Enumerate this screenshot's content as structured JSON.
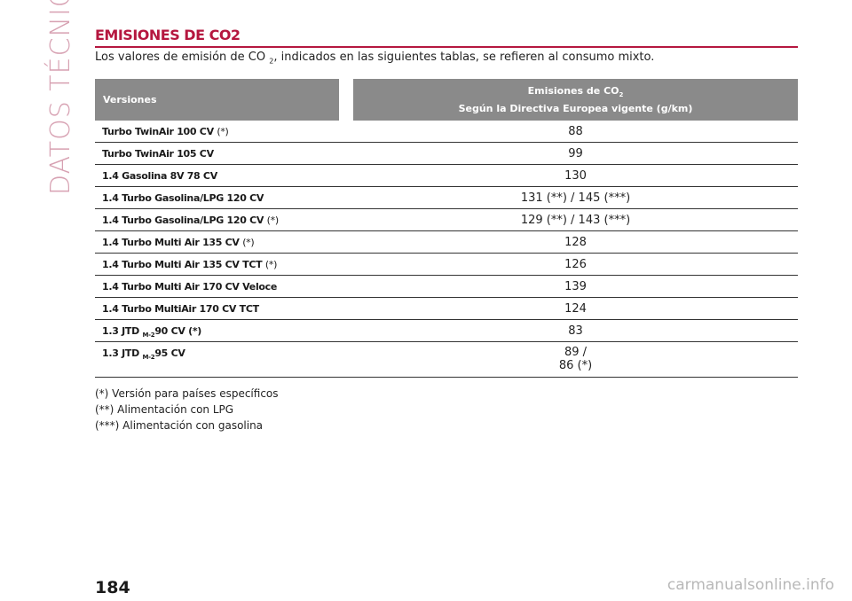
{
  "section_label": "DATOS TÉCNICOS",
  "heading": "EMISIONES DE CO2",
  "intro": {
    "before": "Los valores de emisión de CO ",
    "sub": "2",
    "after": ", indicados en las siguientes tablas, se refieren al consumo mixto."
  },
  "table": {
    "header_versions": "Versiones",
    "header_emissions_line1": "Emisiones de CO",
    "header_emissions_sub": "2",
    "header_emissions_line2": "Según la Directiva Europea vigente (g/km)",
    "rows": [
      {
        "name": "Turbo TwinAir 100 CV",
        "note": "(*)",
        "value": "88"
      },
      {
        "name": "Turbo TwinAir 105 CV",
        "note": "",
        "value": "99"
      },
      {
        "name": "1.4 Gasolina 8V 78 CV",
        "note": "",
        "value": "130"
      },
      {
        "name": "1.4 Turbo Gasolina/LPG 120 CV",
        "note": "",
        "value": "131 (**) / 145 (***)"
      },
      {
        "name": "1.4 Turbo Gasolina/LPG 120 CV",
        "note": "(*)",
        "value": "129 (**) / 143 (***)"
      },
      {
        "name": "1.4 Turbo Multi Air 135 CV",
        "note": "(*)",
        "value": "128"
      },
      {
        "name": "1.4 Turbo Multi Air 135 CV TCT",
        "note": "(*)",
        "value": "126"
      },
      {
        "name": "1.4 Turbo Multi Air 170 CV Veloce",
        "note": "",
        "value": "139"
      },
      {
        "name": "1.4 Turbo MultiAir 170 CV TCT",
        "note": "",
        "value": "124"
      },
      {
        "name_prefix": "1.3 JTD",
        "name_sub": "M-2",
        "name_suffix": "90 CV",
        "note": "(*)",
        "value": "83"
      },
      {
        "name_prefix": "1.3 JTD",
        "name_sub": "M-2",
        "name_suffix": "95 CV",
        "note": "",
        "value_line1": "89 /",
        "value_line2": "86 (*)"
      }
    ]
  },
  "notes": [
    "(*) Versión para países específicos",
    "(**) Alimentación con LPG",
    "(***) Alimentación con gasolina"
  ],
  "page_number": "184",
  "watermark": "carmanualsonline.info",
  "colors": {
    "accent": "#b5173f",
    "side_label": "#d7a1b2",
    "table_header": "#8a8a8a"
  }
}
